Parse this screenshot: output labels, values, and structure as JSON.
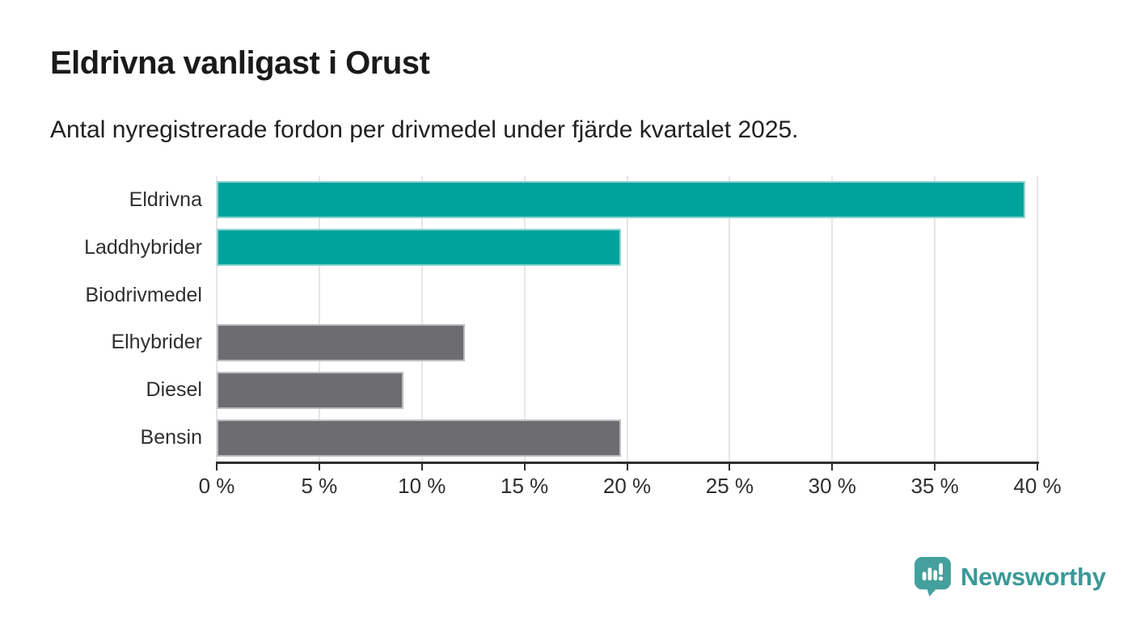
{
  "header": {
    "title": "Eldrivna vanligast i Orust",
    "subtitle": "Antal nyregistrerade fordon per drivmedel under fjärde kvartalet 2025."
  },
  "chart_data": {
    "type": "bar",
    "orientation": "horizontal",
    "title": "Eldrivna vanligast i Orust",
    "subtitle": "Antal nyregistrerade fordon per drivmedel under fjärde kvartalet 2025.",
    "categories": [
      "Eldrivna",
      "Laddhybrider",
      "Biodrivmedel",
      "Elhybrider",
      "Diesel",
      "Bensin"
    ],
    "values": [
      39.4,
      19.7,
      0,
      12.1,
      9.1,
      19.7
    ],
    "unit": "%",
    "bar_colors": [
      "#00a39b",
      "#00a39b",
      "#6c6c71",
      "#6c6c71",
      "#6c6c71",
      "#6c6c71"
    ],
    "xlim": [
      0,
      40
    ],
    "x_ticks": [
      0,
      5,
      10,
      15,
      20,
      25,
      30,
      35,
      40
    ],
    "x_tick_labels": [
      "0 %",
      "5 %",
      "10 %",
      "15 %",
      "20 %",
      "25 %",
      "30 %",
      "35 %",
      "40 %"
    ],
    "xlabel": "",
    "ylabel": "",
    "grid": "vertical",
    "legend": "none",
    "data_labels": "none"
  },
  "branding": {
    "name": "Newsworthy",
    "icon": "newsworthy-speech-bubble-bar-chart-icon",
    "icon_color": "#44a09d",
    "text_color": "#3a9997"
  },
  "colors": {
    "highlight_teal": "#00a39b",
    "neutral_gray": "#6c6c71",
    "axis": "#2e2e2e",
    "gridline": "#e6e6e8",
    "title_text": "#1a1a19",
    "body_text": "#2f2f2f",
    "background": "#ffffff"
  }
}
